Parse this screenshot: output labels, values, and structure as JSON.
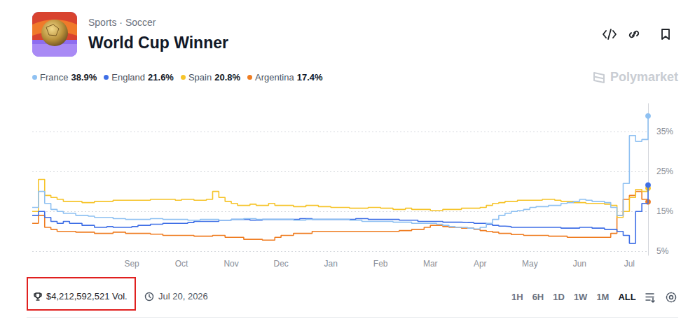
{
  "header": {
    "breadcrumb": "Sports · Soccer",
    "title": "World Cup Winner"
  },
  "watermark": "Polymarket",
  "chart_data": {
    "type": "line",
    "categories": [
      null,
      null,
      null,
      null,
      null,
      null,
      null,
      null,
      null,
      null,
      null,
      null,
      null,
      null,
      null,
      null,
      "Sep",
      null,
      null,
      null,
      null,
      null,
      null,
      null,
      "Oct",
      null,
      null,
      null,
      null,
      null,
      null,
      null,
      "Nov",
      null,
      null,
      null,
      null,
      null,
      null,
      null,
      "Dec",
      null,
      null,
      null,
      null,
      null,
      null,
      null,
      "Jan",
      null,
      null,
      null,
      null,
      null,
      null,
      null,
      "Feb",
      null,
      null,
      null,
      null,
      null,
      null,
      null,
      "Mar",
      null,
      null,
      null,
      null,
      null,
      null,
      null,
      "Apr",
      null,
      null,
      null,
      null,
      null,
      null,
      null,
      "May",
      null,
      null,
      null,
      null,
      null,
      null,
      null,
      "Jun",
      null,
      null,
      null,
      null,
      null,
      null,
      null,
      "Jul",
      null,
      null,
      null
    ],
    "series": [
      {
        "name": "France",
        "color": "#8fc1f2",
        "current_label": "38.9%",
        "values": [
          16,
          20,
          17,
          15.5,
          15,
          14.5,
          14.5,
          14,
          14,
          13.8,
          13.5,
          13.5,
          13.5,
          13.2,
          13.2,
          13,
          13,
          13,
          13,
          13.2,
          13.2,
          13,
          13,
          13,
          13,
          12.8,
          12.8,
          13,
          13,
          13,
          12.8,
          12.8,
          13,
          13,
          13.2,
          13.2,
          13,
          13,
          13,
          13,
          13,
          13,
          12.8,
          12.8,
          13,
          13,
          13,
          13,
          13,
          13,
          13,
          12.8,
          12.8,
          12.5,
          12.5,
          12.5,
          12.5,
          12.5,
          12.3,
          12.3,
          12.3,
          12,
          12,
          12,
          12,
          11.8,
          11.5,
          11.2,
          11,
          11,
          10.8,
          10.6,
          11,
          12,
          13,
          14,
          14.5,
          15,
          15.2,
          15.5,
          16,
          16.2,
          16.2,
          16.5,
          16.5,
          17,
          17.2,
          17.5,
          18,
          17.8,
          17.5,
          17.5,
          17.2,
          16,
          14,
          22,
          34,
          32.5,
          33,
          38.9
        ]
      },
      {
        "name": "England",
        "color": "#3f6fe6",
        "current_label": "21.6%",
        "values": [
          14,
          15,
          13.5,
          12.5,
          12,
          12.5,
          12,
          12,
          11.5,
          11.5,
          11,
          11,
          11.2,
          11,
          11,
          11,
          11.2,
          11.5,
          11.5,
          11.8,
          11.8,
          12,
          12,
          12,
          12,
          12.2,
          12.5,
          12.5,
          12.5,
          12.5,
          12.8,
          12.8,
          13,
          13,
          13,
          12.8,
          12.8,
          13,
          13,
          13,
          13,
          13,
          13,
          13.2,
          13.2,
          13,
          13,
          13,
          13,
          13,
          13,
          13,
          13.2,
          13.2,
          13,
          13,
          13,
          13,
          13,
          12.8,
          12.8,
          12.8,
          12.5,
          12.5,
          12.5,
          12.5,
          12.3,
          12.3,
          12.3,
          12.2,
          12.2,
          12,
          12,
          11.8,
          11.5,
          11.3,
          11.2,
          11,
          11,
          11,
          11,
          11,
          11,
          11,
          11,
          10.8,
          10.8,
          10.8,
          11,
          11,
          10.8,
          10.8,
          10.5,
          10.5,
          10,
          9,
          7,
          15,
          17,
          21.6
        ]
      },
      {
        "name": "Spain",
        "color": "#f6c42a",
        "current_label": "20.8%",
        "values": [
          15,
          23,
          19,
          18.5,
          18,
          17.5,
          17.5,
          17.5,
          17.2,
          17.2,
          17.5,
          17.5,
          17.5,
          17.8,
          17.8,
          17.8,
          17.8,
          17.8,
          17.8,
          18,
          18,
          18,
          18,
          17.8,
          18,
          18,
          17.8,
          17.8,
          18,
          20,
          18.5,
          17.5,
          17,
          16.5,
          16.5,
          16.8,
          16.5,
          16.5,
          17,
          16.5,
          16.5,
          16.5,
          16.2,
          16.2,
          16.5,
          16.5,
          16.2,
          16.2,
          16,
          16,
          16,
          15.8,
          15.8,
          15.8,
          16,
          16,
          15.8,
          15.8,
          15.5,
          15.5,
          15.8,
          15.5,
          15.5,
          15.5,
          15.2,
          15.2,
          15.5,
          15.5,
          15.5,
          15.8,
          15.8,
          15.8,
          16,
          16.5,
          17,
          17.2,
          17.5,
          17.5,
          17.8,
          17.8,
          17.8,
          17.8,
          18,
          18,
          17.8,
          17.5,
          17.5,
          17.2,
          17.2,
          17,
          17,
          17,
          16.8,
          16.5,
          13.5,
          15,
          18.5,
          20.5,
          20,
          20.8
        ]
      },
      {
        "name": "Argentina",
        "color": "#ef7d22",
        "current_label": "17.4%",
        "values": [
          12,
          14,
          11,
          10.5,
          10,
          10,
          10,
          9.8,
          9.8,
          9.8,
          9.5,
          9.5,
          9.5,
          9.8,
          9.8,
          9.5,
          9.5,
          9.5,
          9.5,
          9.3,
          9.3,
          9,
          9,
          9,
          9,
          9,
          8.8,
          8.8,
          8.8,
          9,
          9,
          8.5,
          8.5,
          8.5,
          8,
          8,
          8,
          7.8,
          7.8,
          8.5,
          9,
          9,
          9.5,
          9.5,
          9.5,
          10,
          10,
          10,
          10,
          10,
          10,
          10,
          10,
          10,
          10,
          10,
          10,
          10,
          10,
          10.2,
          10.2,
          10.5,
          10.5,
          11,
          11.5,
          11.5,
          11.2,
          11,
          11,
          10.8,
          10.8,
          10.5,
          10.2,
          10,
          9.8,
          9.5,
          9.5,
          9.2,
          9.2,
          9,
          9,
          9,
          9,
          8.8,
          8.8,
          8.8,
          8.5,
          8.5,
          8.5,
          8.5,
          8.5,
          8.5,
          8.5,
          9.5,
          14,
          18,
          19,
          20,
          18,
          17.4
        ]
      }
    ],
    "ylim": [
      4,
      42
    ],
    "yticks": [
      {
        "value": 5,
        "label": "5%"
      },
      {
        "value": 15,
        "label": "15%"
      },
      {
        "value": 25,
        "label": "25%"
      },
      {
        "value": 35,
        "label": "35%"
      }
    ],
    "grid": true,
    "legend": "top-left"
  },
  "footer": {
    "volume": "$4,212,592,521 Vol.",
    "date": "Jul 20, 2026",
    "ranges": [
      "1H",
      "6H",
      "1D",
      "1W",
      "1M",
      "ALL"
    ],
    "selected": "ALL"
  }
}
